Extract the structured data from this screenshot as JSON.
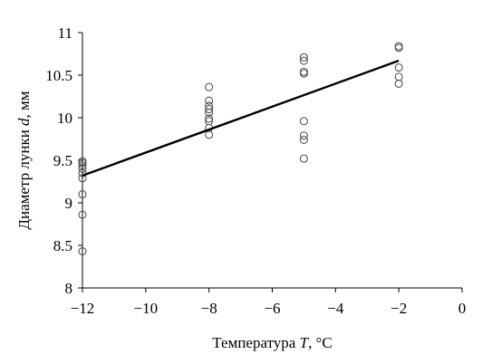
{
  "chart_data": {
    "type": "scatter",
    "title": "",
    "xlabel": {
      "prefix": "Температура ",
      "var": "T",
      "suffix": ", °C"
    },
    "ylabel": {
      "prefix": "Диаметр лунки ",
      "var": "d",
      "suffix": ", мм"
    },
    "xlim": [
      -12,
      0
    ],
    "ylim": [
      8,
      11
    ],
    "xticks": [
      -12,
      -10,
      -8,
      -6,
      -4,
      -2,
      0
    ],
    "xtick_labels": [
      "−12",
      "−10",
      "−8",
      "−6",
      "−4",
      "−2",
      "0"
    ],
    "yticks": [
      8,
      8.5,
      9,
      9.5,
      10,
      10.5,
      11
    ],
    "ytick_labels": [
      "8",
      "8.5",
      "9",
      "9.5",
      "10",
      "10.5",
      "11"
    ],
    "grid": false,
    "series": [
      {
        "marker": "open-circle",
        "color": "#555555",
        "points": [
          [
            -12,
            8.43
          ],
          [
            -12,
            8.86
          ],
          [
            -12,
            9.1
          ],
          [
            -12,
            9.29
          ],
          [
            -12,
            9.35
          ],
          [
            -12,
            9.4
          ],
          [
            -12,
            9.44
          ],
          [
            -12,
            9.47
          ],
          [
            -12,
            9.49
          ],
          [
            -8,
            9.8
          ],
          [
            -8,
            9.88
          ],
          [
            -8,
            9.96
          ],
          [
            -8,
            9.99
          ],
          [
            -8,
            10.06
          ],
          [
            -8,
            10.1
          ],
          [
            -8,
            10.14
          ],
          [
            -8,
            10.2
          ],
          [
            -8,
            10.36
          ],
          [
            -5,
            9.52
          ],
          [
            -5,
            9.74
          ],
          [
            -5,
            9.79
          ],
          [
            -5,
            9.96
          ],
          [
            -5,
            10.52
          ],
          [
            -5,
            10.54
          ],
          [
            -5,
            10.67
          ],
          [
            -5,
            10.71
          ],
          [
            -2,
            10.4
          ],
          [
            -2,
            10.48
          ],
          [
            -2,
            10.59
          ],
          [
            -2,
            10.82
          ],
          [
            -2,
            10.84
          ]
        ]
      }
    ],
    "trendline": {
      "color": "#000000",
      "from": [
        -12,
        9.32
      ],
      "to": [
        -2,
        10.67
      ]
    }
  }
}
